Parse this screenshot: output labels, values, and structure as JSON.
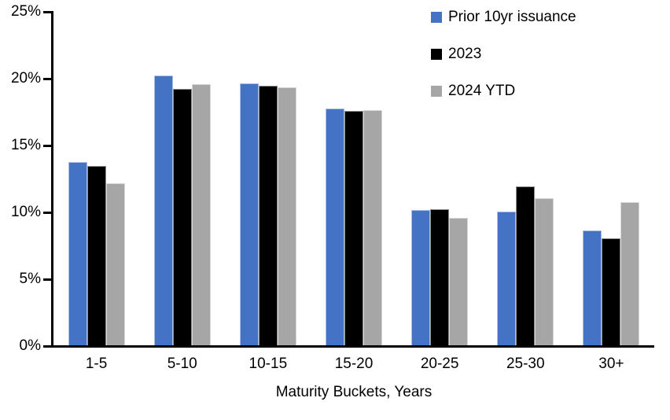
{
  "chart_data": {
    "type": "bar",
    "title": "",
    "categories": [
      "1-5",
      "5-10",
      "10-15",
      "15-20",
      "20-25",
      "25-30",
      "30+"
    ],
    "series": [
      {
        "name": "Prior 10yr issuance",
        "color": "#4472C4",
        "values": [
          13.7,
          20.2,
          19.6,
          17.7,
          10.1,
          10.0,
          8.6
        ]
      },
      {
        "name": "2023",
        "color": "#000000",
        "values": [
          13.4,
          19.2,
          19.4,
          17.5,
          10.2,
          11.9,
          8.0
        ]
      },
      {
        "name": "2024 YTD",
        "color": "#A6A6A6",
        "values": [
          12.1,
          19.5,
          19.3,
          17.6,
          9.5,
          11.0,
          10.7
        ]
      }
    ],
    "xlabel": "Maturity Buckets, Years",
    "ylabel": "",
    "ylim": [
      0,
      25
    ],
    "y_tick_step": 5,
    "y_tick_labels": [
      "0%",
      "5%",
      "10%",
      "15%",
      "20%",
      "25%"
    ],
    "grid": false,
    "legend_position": "top-right",
    "background_color": "#FFFFFF",
    "axis_color": "#000000"
  }
}
